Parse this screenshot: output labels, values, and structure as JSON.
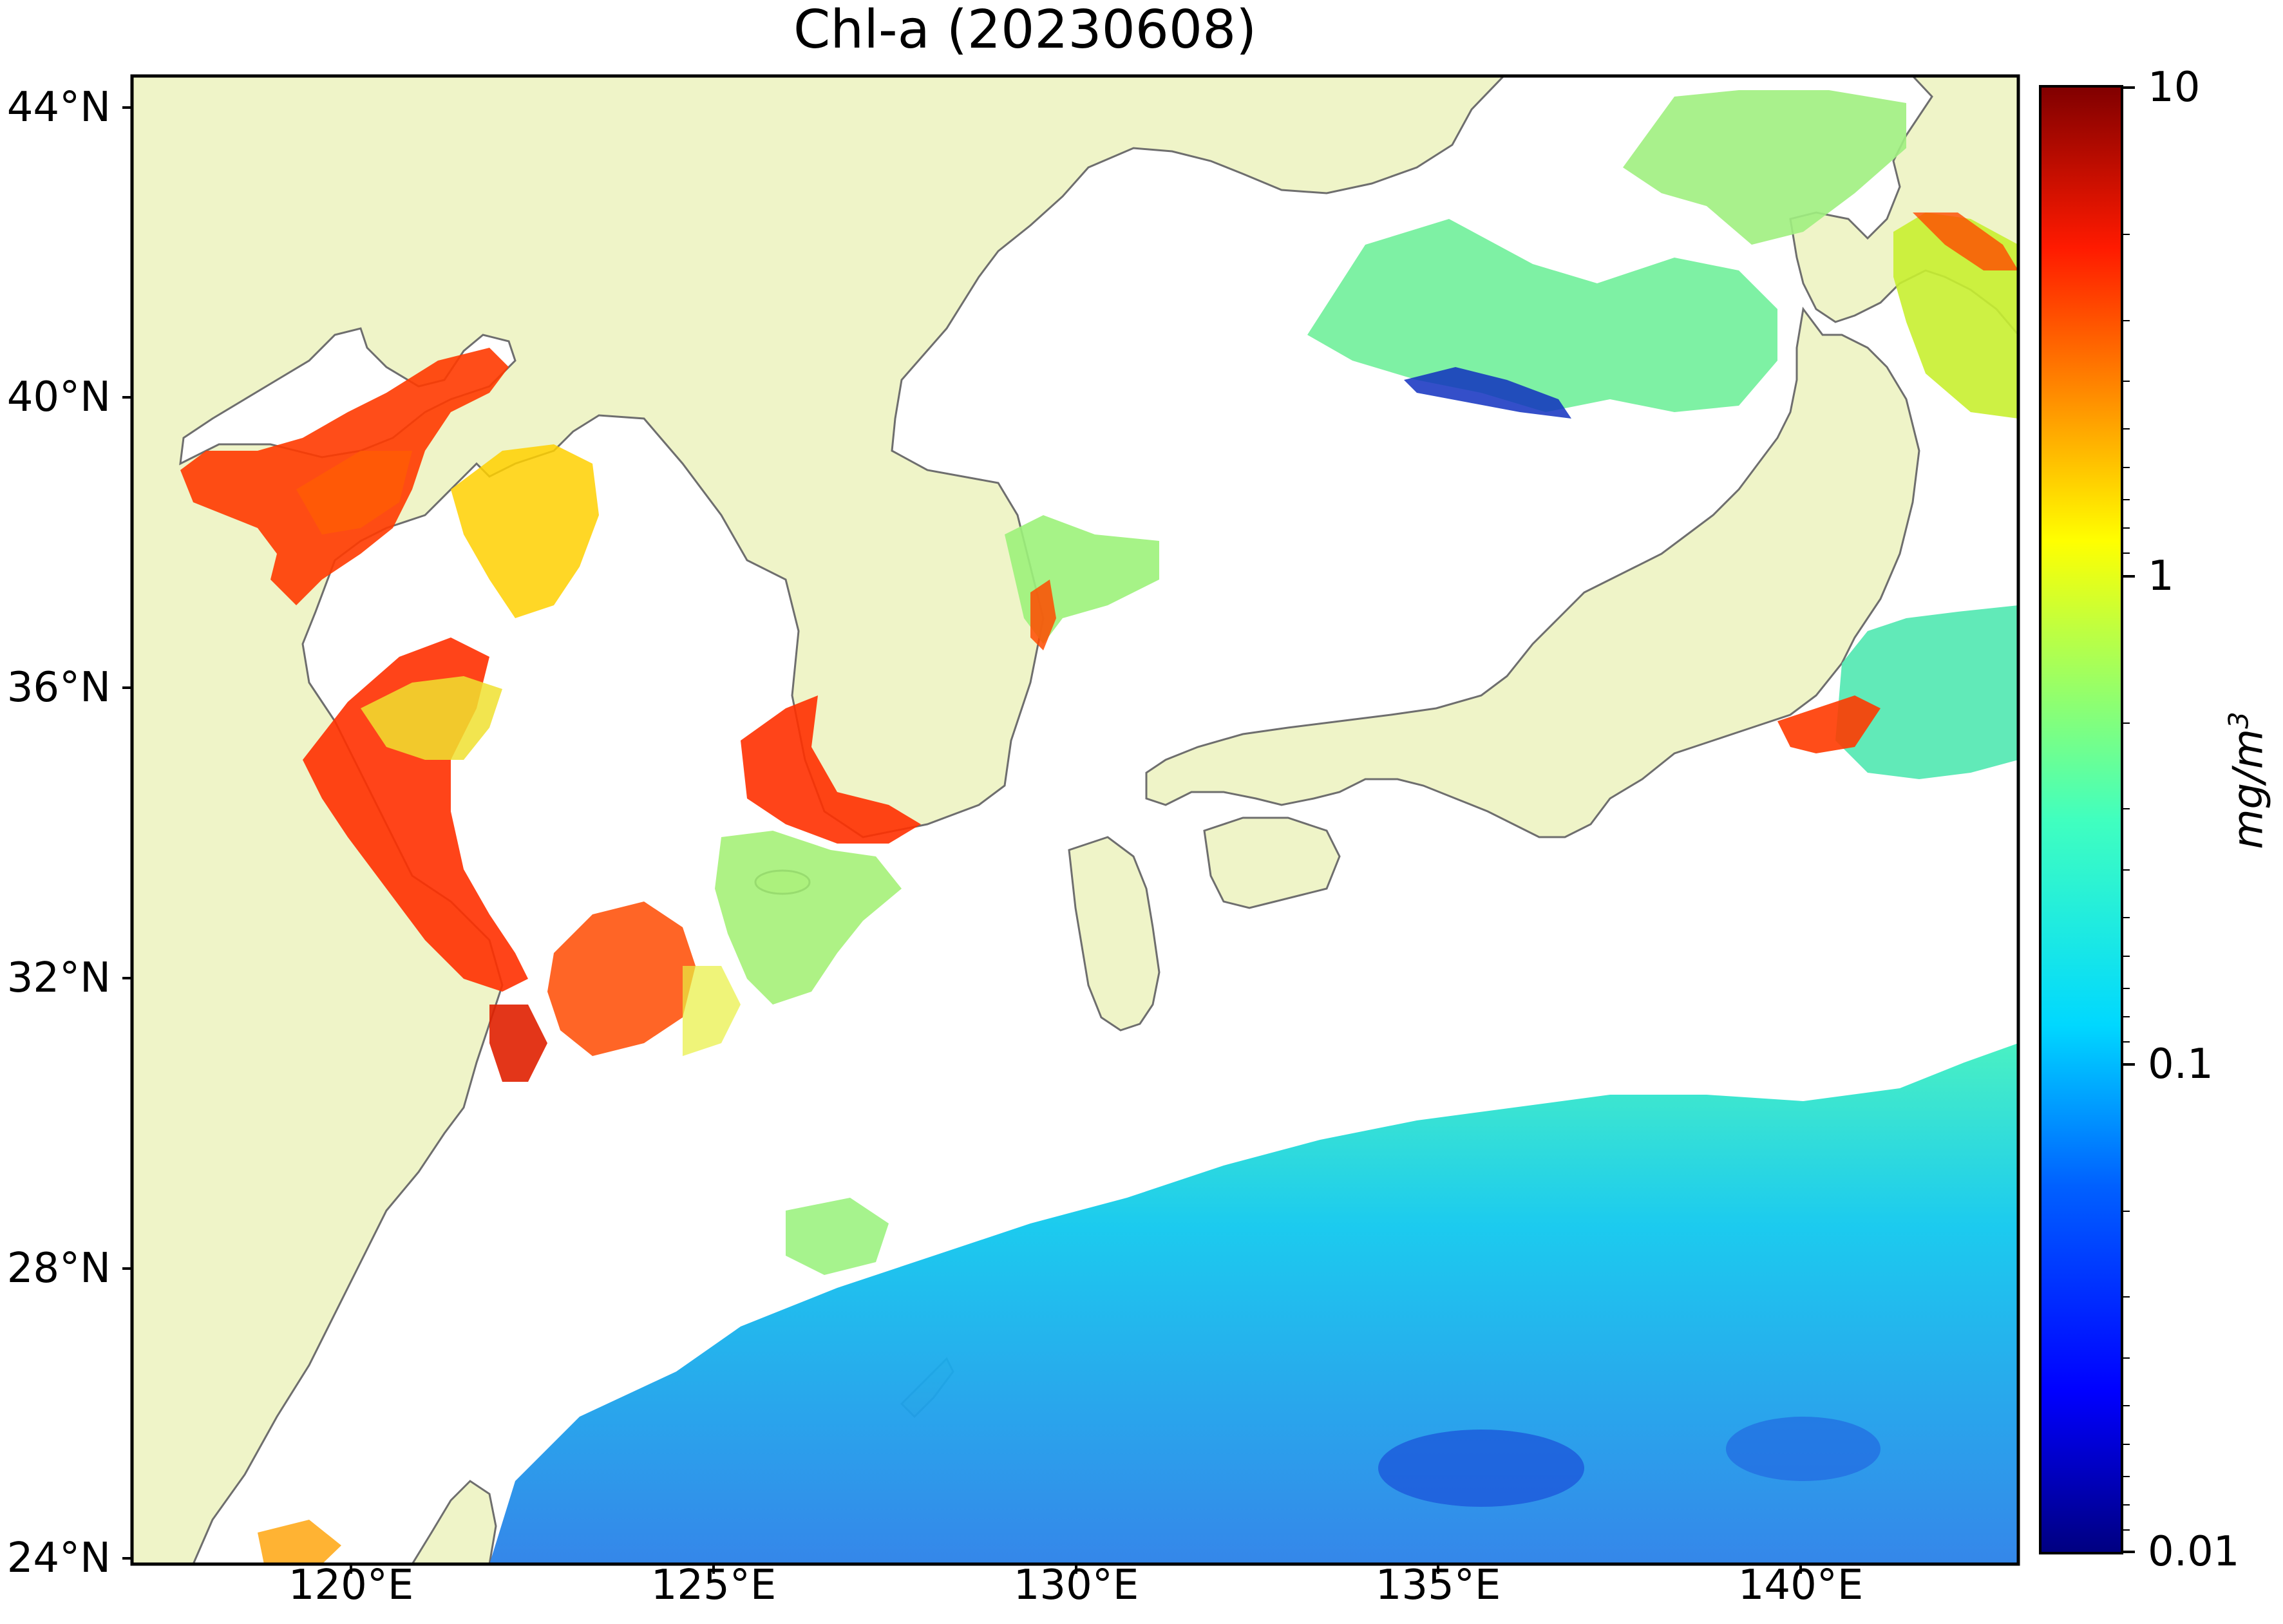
{
  "title": "Chl-a (20230608)",
  "lat_labels": [
    "44°N",
    "40°N",
    "36°N",
    "32°N",
    "28°N",
    "24°N"
  ],
  "lon_labels": [
    "120°E",
    "125°E",
    "130°E",
    "135°E",
    "140°E"
  ],
  "colorbar": {
    "labels": [
      "10",
      "1",
      "0.1",
      "0.01"
    ],
    "unit_label": "mg/m",
    "unit_exponent": "3",
    "colors": [
      "#000080",
      "#0000ff",
      "#0080ff",
      "#00e5ff",
      "#40ffbf",
      "#bfff40",
      "#ffe600",
      "#ff8000",
      "#ff1a00",
      "#800000"
    ]
  },
  "colors": {
    "land": "#eff4c8",
    "coast": "#6e6e6e",
    "ocean_no_data": "#ffffff"
  }
}
